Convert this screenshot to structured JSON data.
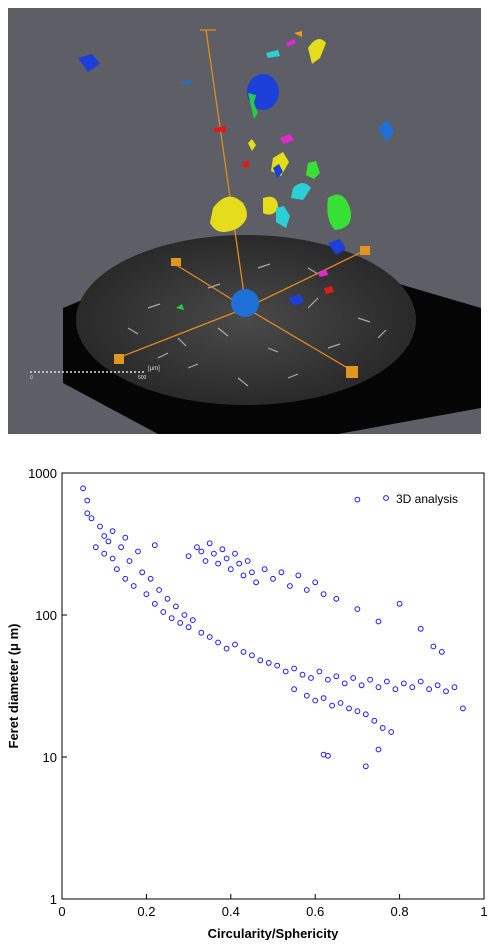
{
  "render_view": {
    "scale_bar_label": "[µm]",
    "scale_bar_ticks": [
      "0",
      "500"
    ],
    "background_color": "#5e5f66",
    "disc_color": "#3a3a3a",
    "frame_color": "#e08a1e"
  },
  "chart_data": {
    "type": "scatter",
    "xlabel": "Circularity/Sphericity",
    "ylabel": "Feret diameter (μ m)",
    "xlim": [
      0,
      1
    ],
    "ylim": [
      1,
      1000
    ],
    "y_scale": "log",
    "x_ticks": [
      "0",
      "0.2",
      "0.4",
      "0.6",
      "0.8",
      "1"
    ],
    "y_ticks": [
      "1",
      "10",
      "100",
      "1000"
    ],
    "legend": {
      "label": "3D analysis",
      "position": "top-right"
    },
    "marker": {
      "shape": "open-circle",
      "color": "#1a1aff"
    },
    "grid": false,
    "series": [
      {
        "name": "3D analysis",
        "points": [
          [
            0.05,
            780
          ],
          [
            0.06,
            520
          ],
          [
            0.06,
            640
          ],
          [
            0.07,
            480
          ],
          [
            0.08,
            300
          ],
          [
            0.09,
            420
          ],
          [
            0.1,
            360
          ],
          [
            0.1,
            270
          ],
          [
            0.11,
            330
          ],
          [
            0.12,
            250
          ],
          [
            0.12,
            390
          ],
          [
            0.13,
            210
          ],
          [
            0.14,
            300
          ],
          [
            0.15,
            180
          ],
          [
            0.15,
            350
          ],
          [
            0.16,
            240
          ],
          [
            0.17,
            160
          ],
          [
            0.18,
            280
          ],
          [
            0.19,
            200
          ],
          [
            0.2,
            140
          ],
          [
            0.21,
            180
          ],
          [
            0.22,
            120
          ],
          [
            0.22,
            310
          ],
          [
            0.23,
            150
          ],
          [
            0.24,
            105
          ],
          [
            0.25,
            130
          ],
          [
            0.26,
            95
          ],
          [
            0.27,
            115
          ],
          [
            0.28,
            88
          ],
          [
            0.29,
            100
          ],
          [
            0.3,
            82
          ],
          [
            0.31,
            92
          ],
          [
            0.3,
            260
          ],
          [
            0.32,
            300
          ],
          [
            0.33,
            280
          ],
          [
            0.34,
            240
          ],
          [
            0.35,
            320
          ],
          [
            0.36,
            270
          ],
          [
            0.37,
            230
          ],
          [
            0.38,
            290
          ],
          [
            0.39,
            250
          ],
          [
            0.4,
            210
          ],
          [
            0.41,
            270
          ],
          [
            0.42,
            230
          ],
          [
            0.43,
            190
          ],
          [
            0.44,
            240
          ],
          [
            0.45,
            200
          ],
          [
            0.46,
            170
          ],
          [
            0.48,
            210
          ],
          [
            0.5,
            180
          ],
          [
            0.52,
            200
          ],
          [
            0.54,
            160
          ],
          [
            0.56,
            190
          ],
          [
            0.58,
            150
          ],
          [
            0.6,
            170
          ],
          [
            0.62,
            140
          ],
          [
            0.33,
            75
          ],
          [
            0.35,
            70
          ],
          [
            0.37,
            64
          ],
          [
            0.39,
            58
          ],
          [
            0.41,
            62
          ],
          [
            0.43,
            55
          ],
          [
            0.45,
            52
          ],
          [
            0.47,
            48
          ],
          [
            0.49,
            46
          ],
          [
            0.51,
            44
          ],
          [
            0.53,
            40
          ],
          [
            0.55,
            42
          ],
          [
            0.57,
            38
          ],
          [
            0.59,
            36
          ],
          [
            0.61,
            40
          ],
          [
            0.63,
            35
          ],
          [
            0.65,
            37
          ],
          [
            0.67,
            33
          ],
          [
            0.69,
            36
          ],
          [
            0.71,
            32
          ],
          [
            0.73,
            35
          ],
          [
            0.75,
            31
          ],
          [
            0.77,
            34
          ],
          [
            0.79,
            30
          ],
          [
            0.81,
            33
          ],
          [
            0.83,
            31
          ],
          [
            0.85,
            34
          ],
          [
            0.87,
            30
          ],
          [
            0.89,
            32
          ],
          [
            0.91,
            29
          ],
          [
            0.93,
            31
          ],
          [
            0.95,
            22
          ],
          [
            0.55,
            30
          ],
          [
            0.58,
            27
          ],
          [
            0.6,
            25
          ],
          [
            0.62,
            26
          ],
          [
            0.64,
            23
          ],
          [
            0.66,
            24
          ],
          [
            0.68,
            22
          ],
          [
            0.7,
            21
          ],
          [
            0.72,
            20
          ],
          [
            0.74,
            18
          ],
          [
            0.76,
            16
          ],
          [
            0.78,
            15
          ],
          [
            0.62,
            10.4
          ],
          [
            0.63,
            10.2
          ],
          [
            0.72,
            8.6
          ],
          [
            0.75,
            11.3
          ],
          [
            0.7,
            650
          ],
          [
            0.8,
            120
          ],
          [
            0.85,
            80
          ],
          [
            0.9,
            55
          ],
          [
            0.88,
            60
          ],
          [
            0.75,
            90
          ],
          [
            0.7,
            110
          ],
          [
            0.65,
            130
          ]
        ]
      }
    ]
  }
}
